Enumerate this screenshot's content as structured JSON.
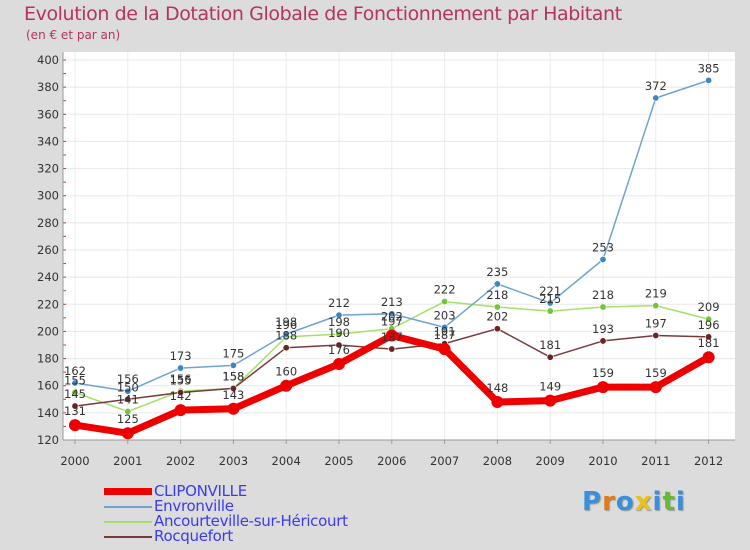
{
  "title": "Evolution de la Dotation Globale de Fonctionnement par Habitant",
  "subtitle": "(en € et par an)",
  "logo": {
    "letters": [
      "P",
      "r",
      "o",
      "x",
      "i",
      "t",
      "i"
    ],
    "colors": [
      "#3a8fd8",
      "#e07a1a",
      "#3a8fd8",
      "#e8c21a",
      "#3a8fd8",
      "#6ab83a",
      "#3a8fd8"
    ]
  },
  "chart_data": {
    "type": "line",
    "title": "Evolution de la Dotation Globale de Fonctionnement par Habitant",
    "ylabel": "(en € et par an)",
    "xlabel": "",
    "ylim": [
      120,
      400
    ],
    "yticks": [
      120,
      140,
      160,
      180,
      200,
      220,
      240,
      260,
      280,
      300,
      320,
      340,
      360,
      380,
      400
    ],
    "categories": [
      "2000",
      "2001",
      "2002",
      "2003",
      "2004",
      "2005",
      "2006",
      "2007",
      "2008",
      "2009",
      "2010",
      "2011",
      "2012"
    ],
    "legend_position": "bottom-left",
    "series": [
      {
        "name": "Envronville",
        "color": "#6fa3d2",
        "marker": "#3b86c4",
        "values": [
          162,
          156,
          173,
          175,
          198,
          212,
          213,
          203,
          235,
          221,
          253,
          372,
          385
        ]
      },
      {
        "name": "Ancourteville-sur-Héricourt",
        "color": "#a8df6a",
        "marker": "#74c43a",
        "values": [
          155,
          141,
          156,
          158,
          196,
          198,
          202,
          222,
          218,
          215,
          218,
          219,
          209
        ]
      },
      {
        "name": "Rocquefort",
        "color": "#7a3a3a",
        "marker": "#6a2424",
        "values": [
          145,
          150,
          155,
          158,
          188,
          190,
          187,
          191,
          202,
          181,
          193,
          197,
          196
        ]
      },
      {
        "name": "CLIPONVILLE",
        "color": "#ee0000",
        "marker": "#ee0000",
        "values": [
          131,
          125,
          142,
          143,
          160,
          176,
          197,
          187,
          148,
          149,
          159,
          159,
          181
        ]
      }
    ],
    "legend_order": [
      "CLIPONVILLE",
      "Envronville",
      "Ancourteville-sur-Héricourt",
      "Rocquefort"
    ]
  }
}
